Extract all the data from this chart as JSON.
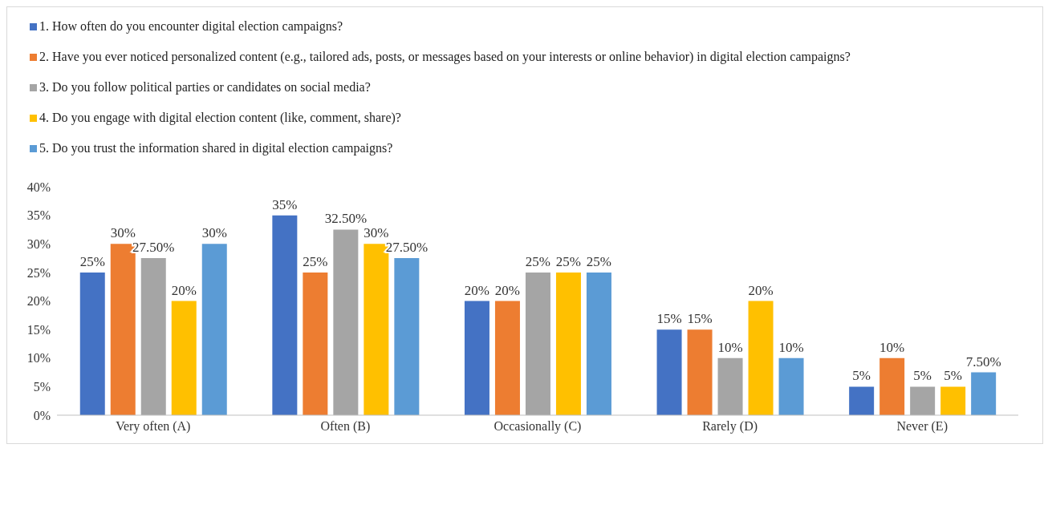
{
  "chart_data": {
    "type": "bar",
    "categories": [
      "Very often (A)",
      "Often (B)",
      "Occasionally (C)",
      "Rarely (D)",
      "Never (E)"
    ],
    "series": [
      {
        "name": "1. How often do you encounter digital election campaigns?",
        "color": "#4472c4",
        "values": [
          25,
          35,
          20,
          15,
          5
        ],
        "value_labels": [
          "25%",
          "35%",
          "20%",
          "15%",
          "5%"
        ]
      },
      {
        "name": "2. Have you ever noticed personalized content (e.g., tailored ads, posts, or messages based on your interests or online behavior) in digital election campaigns?",
        "color": "#ed7d31",
        "values": [
          30,
          25,
          20,
          15,
          10
        ],
        "value_labels": [
          "30%",
          "25%",
          "20%",
          "15%",
          "10%"
        ]
      },
      {
        "name": "3. Do you follow political parties or candidates on social media?",
        "color": "#a5a5a5",
        "values": [
          27.5,
          32.5,
          25,
          10,
          5
        ],
        "value_labels": [
          "27.50%",
          "32.50%",
          "25%",
          "10%",
          "5%"
        ]
      },
      {
        "name": "4. Do you engage with digital election content (like, comment, share)?",
        "color": "#ffc000",
        "values": [
          20,
          30,
          25,
          20,
          5
        ],
        "value_labels": [
          "20%",
          "30%",
          "25%",
          "20%",
          "5%"
        ]
      },
      {
        "name": "5. Do you trust the information shared in digital election campaigns?",
        "color": "#5b9bd5",
        "values": [
          30,
          27.5,
          25,
          10,
          7.5
        ],
        "value_labels": [
          "30%",
          "27.50%",
          "25%",
          "10%",
          "7.50%"
        ]
      }
    ],
    "ylim": [
      0,
      40
    ],
    "yticks": [
      {
        "value": 0,
        "label": "0%"
      },
      {
        "value": 5,
        "label": "5%"
      },
      {
        "value": 10,
        "label": "10%"
      },
      {
        "value": 15,
        "label": "15%"
      },
      {
        "value": 20,
        "label": "20%"
      },
      {
        "value": 25,
        "label": "25%"
      },
      {
        "value": 30,
        "label": "30%"
      },
      {
        "value": 35,
        "label": "35%"
      },
      {
        "value": 40,
        "label": "40%"
      }
    ],
    "legend": "top",
    "grid": false
  }
}
